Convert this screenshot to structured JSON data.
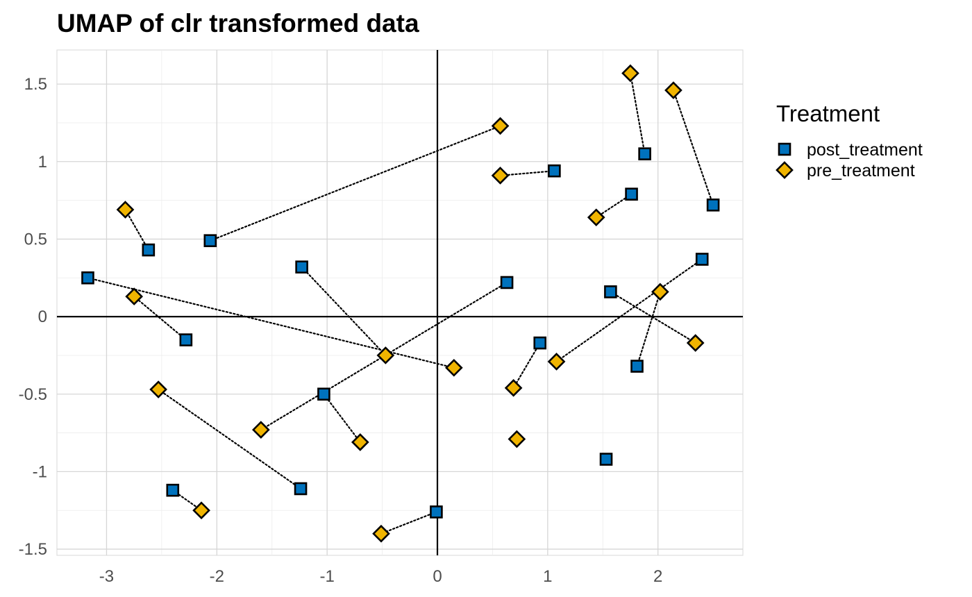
{
  "chart_data": {
    "type": "scatter",
    "title": "UMAP of clr transformed data",
    "xlabel": "",
    "ylabel": "",
    "xlim": [
      -3.45,
      2.77
    ],
    "ylim": [
      -1.54,
      1.72
    ],
    "x_ticks": [
      -3,
      -2,
      -1,
      0,
      1,
      2
    ],
    "y_ticks": [
      1.5,
      1,
      0.5,
      0,
      -0.5,
      -1,
      -1.5
    ],
    "x_tick_labels": [
      "-3",
      "-2",
      "-1",
      "0",
      "1",
      "2"
    ],
    "y_tick_labels": [
      "1.5",
      "1",
      "0.5",
      "0",
      "-0.5",
      "-1",
      "-1.5"
    ],
    "grid": true,
    "reference_lines": {
      "x": 0,
      "y": 0
    },
    "legend": {
      "title": "Treatment",
      "placement": "right",
      "entries": [
        "post_treatment",
        "pre_treatment"
      ]
    },
    "series": [
      {
        "name": "post_treatment",
        "marker": "square",
        "color": "#0072BD",
        "points": [
          [
            1.88,
            1.05
          ],
          [
            1.06,
            0.94
          ],
          [
            1.76,
            0.79
          ],
          [
            2.5,
            0.72
          ],
          [
            -2.62,
            0.43
          ],
          [
            -2.06,
            0.49
          ],
          [
            -1.23,
            0.32
          ],
          [
            -3.17,
            0.25
          ],
          [
            0.63,
            0.22
          ],
          [
            1.57,
            0.16
          ],
          [
            2.4,
            0.37
          ],
          [
            -2.28,
            -0.15
          ],
          [
            0.93,
            -0.17
          ],
          [
            1.81,
            -0.32
          ],
          [
            -1.03,
            -0.5
          ],
          [
            1.53,
            -0.92
          ],
          [
            -2.4,
            -1.12
          ],
          [
            -1.24,
            -1.11
          ],
          [
            -0.01,
            -1.26
          ]
        ]
      },
      {
        "name": "pre_treatment",
        "marker": "diamond",
        "color": "#F0B400",
        "points": [
          [
            1.75,
            1.57
          ],
          [
            2.14,
            1.46
          ],
          [
            0.57,
            1.23
          ],
          [
            0.57,
            0.91
          ],
          [
            1.44,
            0.64
          ],
          [
            -2.83,
            0.69
          ],
          [
            -2.75,
            0.13
          ],
          [
            2.02,
            0.16
          ],
          [
            2.34,
            -0.17
          ],
          [
            -0.47,
            -0.25
          ],
          [
            0.15,
            -0.33
          ],
          [
            1.08,
            -0.29
          ],
          [
            0.69,
            -0.46
          ],
          [
            -2.53,
            -0.47
          ],
          [
            -1.6,
            -0.73
          ],
          [
            -0.7,
            -0.81
          ],
          [
            0.72,
            -0.79
          ],
          [
            -2.14,
            -1.25
          ],
          [
            -0.51,
            -1.4
          ]
        ]
      }
    ],
    "connections": [
      [
        [
          1.88,
          1.05
        ],
        [
          1.75,
          1.57
        ]
      ],
      [
        [
          2.5,
          0.72
        ],
        [
          2.14,
          1.46
        ]
      ],
      [
        [
          -2.06,
          0.49
        ],
        [
          0.57,
          1.23
        ]
      ],
      [
        [
          1.06,
          0.94
        ],
        [
          0.57,
          0.91
        ]
      ],
      [
        [
          1.76,
          0.79
        ],
        [
          1.44,
          0.64
        ]
      ],
      [
        [
          -2.62,
          0.43
        ],
        [
          -2.83,
          0.69
        ]
      ],
      [
        [
          -3.17,
          0.25
        ],
        [
          0.15,
          -0.33
        ]
      ],
      [
        [
          -2.28,
          -0.15
        ],
        [
          -2.75,
          0.13
        ]
      ],
      [
        [
          -1.23,
          0.32
        ],
        [
          -0.47,
          -0.25
        ]
      ],
      [
        [
          0.63,
          0.22
        ],
        [
          -1.6,
          -0.73
        ]
      ],
      [
        [
          1.57,
          0.16
        ],
        [
          2.34,
          -0.17
        ]
      ],
      [
        [
          2.4,
          0.37
        ],
        [
          1.08,
          -0.29
        ]
      ],
      [
        [
          1.81,
          -0.32
        ],
        [
          2.02,
          0.16
        ]
      ],
      [
        [
          0.93,
          -0.17
        ],
        [
          0.69,
          -0.46
        ]
      ],
      [
        [
          -1.03,
          -0.5
        ],
        [
          -0.7,
          -0.81
        ]
      ],
      [
        [
          -1.24,
          -1.11
        ],
        [
          -2.53,
          -0.47
        ]
      ],
      [
        [
          -2.4,
          -1.12
        ],
        [
          -2.14,
          -1.25
        ]
      ],
      [
        [
          -0.01,
          -1.26
        ],
        [
          -0.51,
          -1.4
        ]
      ]
    ]
  }
}
